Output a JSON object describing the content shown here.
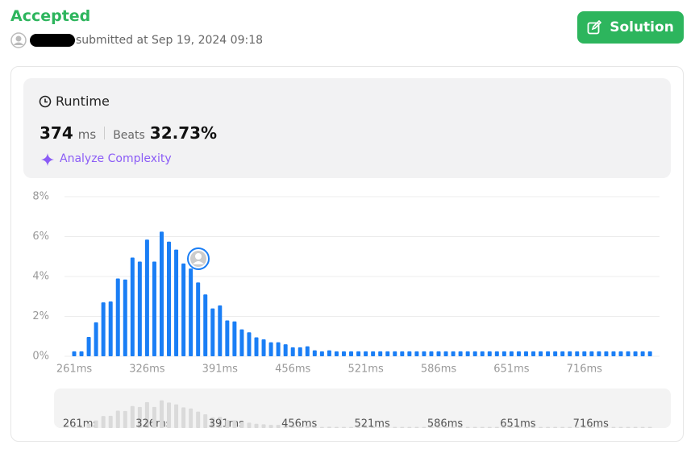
{
  "header": {
    "status": "Accepted",
    "submitted": "submitted at Sep 19, 2024 09:18",
    "button": "Solution"
  },
  "runtime": {
    "label": "Runtime",
    "value": "374",
    "unit": "ms",
    "beats_label": "Beats",
    "beats_value": "32.73%",
    "analyze": "Analyze Complexity"
  },
  "chart_data": {
    "type": "bar",
    "color": "#1a7ef5",
    "overview_color": "#dadada",
    "grid": true,
    "categories": [
      "261ms",
      null,
      null,
      null,
      null,
      null,
      null,
      null,
      null,
      null,
      "326ms",
      null,
      null,
      null,
      null,
      null,
      null,
      null,
      null,
      null,
      "391ms",
      null,
      null,
      null,
      null,
      null,
      null,
      null,
      null,
      null,
      "456ms",
      null,
      null,
      null,
      null,
      null,
      null,
      null,
      null,
      null,
      "521ms",
      null,
      null,
      null,
      null,
      null,
      null,
      null,
      null,
      null,
      "586ms",
      null,
      null,
      null,
      null,
      null,
      null,
      null,
      null,
      null,
      "651ms",
      null,
      null,
      null,
      null,
      null,
      null,
      null,
      null,
      null,
      "716ms",
      null,
      null,
      null,
      null,
      null,
      null,
      null,
      null,
      null
    ],
    "values": [
      0.25,
      0.25,
      0.97,
      1.7,
      2.7,
      2.75,
      3.9,
      3.85,
      4.95,
      4.75,
      5.85,
      4.75,
      6.25,
      5.75,
      5.35,
      4.65,
      4.4,
      3.7,
      3.1,
      2.4,
      2.55,
      1.8,
      1.75,
      1.35,
      1.2,
      0.95,
      0.85,
      0.7,
      0.7,
      0.6,
      0.45,
      0.45,
      0.5,
      0.3,
      0.25,
      0.3,
      0.25,
      0.25,
      0.25,
      0.25,
      0.25,
      0.25,
      0.25,
      0.25,
      0.25,
      0.25,
      0.25,
      0.25,
      0.25,
      0.25,
      0.25,
      0.25,
      0.25,
      0.25,
      0.25,
      0.25,
      0.25,
      0.25,
      0.25,
      0.25,
      0.25,
      0.25,
      0.25,
      0.25,
      0.25,
      0.25,
      0.25,
      0.25,
      0.25,
      0.25,
      0.25,
      0.25,
      0.25,
      0.25,
      0.25,
      0.25,
      0.25,
      0.25,
      0.25,
      0.25
    ],
    "ylim": [
      0,
      8
    ],
    "yticks": [
      {
        "value": 0,
        "label": "0%"
      },
      {
        "value": 2,
        "label": "2%"
      },
      {
        "value": 4,
        "label": "4%"
      },
      {
        "value": 6,
        "label": "6%"
      },
      {
        "value": 8,
        "label": "8%"
      }
    ]
  }
}
